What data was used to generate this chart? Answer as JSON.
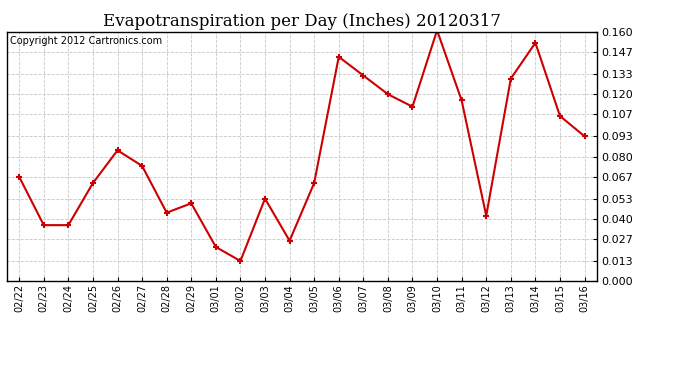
{
  "title": "Evapotranspiration per Day (Inches) 20120317",
  "copyright": "Copyright 2012 Cartronics.com",
  "labels": [
    "02/22",
    "02/23",
    "02/24",
    "02/25",
    "02/26",
    "02/27",
    "02/28",
    "02/29",
    "03/01",
    "03/02",
    "03/03",
    "03/04",
    "03/05",
    "03/06",
    "03/07",
    "03/08",
    "03/09",
    "03/10",
    "03/11",
    "03/12",
    "03/13",
    "03/14",
    "03/15",
    "03/16"
  ],
  "values": [
    0.067,
    0.036,
    0.036,
    0.063,
    0.084,
    0.074,
    0.044,
    0.05,
    0.022,
    0.013,
    0.053,
    0.026,
    0.063,
    0.144,
    0.132,
    0.12,
    0.112,
    0.161,
    0.116,
    0.042,
    0.13,
    0.153,
    0.106,
    0.093
  ],
  "line_color": "#cc0000",
  "marker": "+",
  "marker_size": 5,
  "marker_edge_width": 1.5,
  "line_width": 1.5,
  "ylim": [
    0.0,
    0.16
  ],
  "yticks": [
    0.0,
    0.013,
    0.027,
    0.04,
    0.053,
    0.067,
    0.08,
    0.093,
    0.107,
    0.12,
    0.133,
    0.147,
    0.16
  ],
  "background_color": "#ffffff",
  "grid_color": "#c8c8c8",
  "title_fontsize": 12,
  "copyright_fontsize": 7,
  "xtick_fontsize": 7,
  "ytick_fontsize": 8
}
